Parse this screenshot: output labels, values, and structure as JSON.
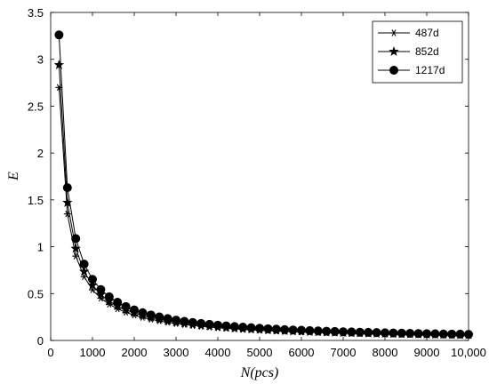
{
  "chart_data": {
    "type": "line",
    "xlabel": "N(pcs)",
    "ylabel": "E",
    "xlim": [
      0,
      10000
    ],
    "ylim": [
      0,
      3.5
    ],
    "xticks": [
      0,
      1000,
      2000,
      3000,
      4000,
      5000,
      6000,
      7000,
      8000,
      9000,
      10000
    ],
    "xtick_labels": [
      "0",
      "1000",
      "2000",
      "3000",
      "4000",
      "5000",
      "6000",
      "7000",
      "8000",
      "9000",
      "10,000"
    ],
    "yticks": [
      0,
      0.5,
      1,
      1.5,
      2,
      2.5,
      3,
      3.5
    ],
    "ytick_labels": [
      "0",
      "0.5",
      "1",
      "1.5",
      "2",
      "2.5",
      "3",
      "3.5"
    ],
    "grid": false,
    "legend_position": "top-right",
    "x": [
      200,
      400,
      600,
      800,
      1000,
      1200,
      1400,
      1600,
      1800,
      2000,
      2200,
      2400,
      2600,
      2800,
      3000,
      3200,
      3400,
      3600,
      3800,
      4000,
      4200,
      4400,
      4600,
      4800,
      5000,
      5200,
      5400,
      5600,
      5800,
      6000,
      6200,
      6400,
      6600,
      6800,
      7000,
      7200,
      7400,
      7600,
      7800,
      8000,
      8200,
      8400,
      8600,
      8800,
      9000,
      9200,
      9400,
      9600,
      9800,
      10000
    ],
    "series": [
      {
        "name": "487d",
        "marker": "asterisk",
        "values": [
          2.7,
          1.35,
          0.9,
          0.68,
          0.54,
          0.45,
          0.386,
          0.338,
          0.3,
          0.27,
          0.245,
          0.225,
          0.208,
          0.193,
          0.18,
          0.169,
          0.159,
          0.15,
          0.142,
          0.135,
          0.129,
          0.123,
          0.117,
          0.113,
          0.108,
          0.104,
          0.1,
          0.096,
          0.093,
          0.09,
          0.087,
          0.084,
          0.082,
          0.079,
          0.077,
          0.075,
          0.073,
          0.071,
          0.069,
          0.068,
          0.066,
          0.064,
          0.063,
          0.061,
          0.06,
          0.059,
          0.057,
          0.056,
          0.055,
          0.054
        ]
      },
      {
        "name": "852d",
        "marker": "star",
        "values": [
          2.94,
          1.47,
          0.98,
          0.735,
          0.588,
          0.49,
          0.42,
          0.368,
          0.327,
          0.294,
          0.267,
          0.245,
          0.226,
          0.21,
          0.196,
          0.184,
          0.173,
          0.163,
          0.155,
          0.147,
          0.14,
          0.134,
          0.128,
          0.123,
          0.118,
          0.113,
          0.109,
          0.105,
          0.101,
          0.098,
          0.095,
          0.092,
          0.089,
          0.086,
          0.084,
          0.082,
          0.079,
          0.077,
          0.075,
          0.074,
          0.072,
          0.07,
          0.068,
          0.067,
          0.065,
          0.064,
          0.063,
          0.061,
          0.06,
          0.059
        ]
      },
      {
        "name": "1217d",
        "marker": "circle",
        "values": [
          3.26,
          1.63,
          1.087,
          0.815,
          0.652,
          0.543,
          0.466,
          0.408,
          0.362,
          0.326,
          0.296,
          0.272,
          0.251,
          0.233,
          0.217,
          0.204,
          0.192,
          0.181,
          0.172,
          0.163,
          0.155,
          0.148,
          0.142,
          0.136,
          0.13,
          0.125,
          0.121,
          0.116,
          0.112,
          0.109,
          0.105,
          0.102,
          0.099,
          0.096,
          0.093,
          0.091,
          0.088,
          0.086,
          0.084,
          0.082,
          0.08,
          0.078,
          0.076,
          0.074,
          0.072,
          0.071,
          0.069,
          0.068,
          0.067,
          0.065
        ]
      }
    ],
    "colors": {
      "line": "#000000",
      "marker": "#000000",
      "background": "#ffffff"
    }
  }
}
